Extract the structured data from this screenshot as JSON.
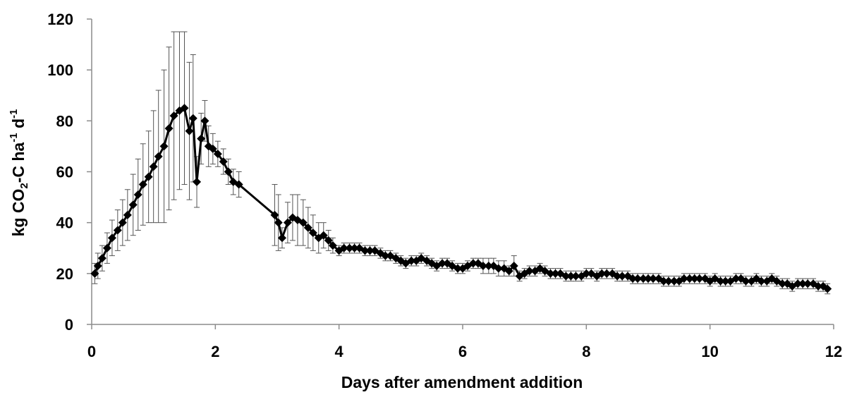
{
  "chart_data": {
    "type": "scatter",
    "title": "",
    "xlabel": "Days after amendment addition",
    "ylabel": {
      "p1": "kg CO",
      "sub1": "2",
      "p2": "-C ha",
      "sup1": "-1",
      "p3": " d",
      "sup2": "-1"
    },
    "xlim": [
      0,
      12
    ],
    "ylim": [
      0,
      120
    ],
    "xticks": [
      "0",
      "2",
      "4",
      "6",
      "8",
      "10",
      "12"
    ],
    "yticks": [
      "0",
      "20",
      "40",
      "60",
      "80",
      "100",
      "120"
    ],
    "grid": false,
    "legend": "none",
    "marker": "diamond",
    "color": "#000000",
    "series": [
      {
        "x": [
          0.05,
          0.1,
          0.17,
          0.25,
          0.33,
          0.42,
          0.5,
          0.58,
          0.67,
          0.75,
          0.83,
          0.92,
          1.0,
          1.08,
          1.17,
          1.25,
          1.33,
          1.42,
          1.5,
          1.58,
          1.64,
          1.7,
          1.77,
          1.83,
          1.89,
          1.96,
          2.04,
          2.13,
          2.21,
          2.29,
          2.38,
          2.96,
          3.02,
          3.08,
          3.17,
          3.25,
          3.33,
          3.42,
          3.5,
          3.58,
          3.67,
          3.75,
          3.83,
          3.9,
          4.0,
          4.08,
          4.17,
          4.25,
          4.33,
          4.42,
          4.5,
          4.58,
          4.67,
          4.75,
          4.83,
          4.92,
          5.0,
          5.08,
          5.17,
          5.25,
          5.33,
          5.42,
          5.5,
          5.58,
          5.67,
          5.75,
          5.83,
          5.92,
          6.0,
          6.08,
          6.17,
          6.25,
          6.33,
          6.42,
          6.5,
          6.58,
          6.67,
          6.75,
          6.83,
          6.92,
          7.0,
          7.08,
          7.17,
          7.25,
          7.33,
          7.42,
          7.5,
          7.58,
          7.67,
          7.75,
          7.83,
          7.92,
          8.0,
          8.08,
          8.17,
          8.25,
          8.33,
          8.42,
          8.5,
          8.58,
          8.67,
          8.75,
          8.83,
          8.92,
          9.0,
          9.08,
          9.17,
          9.25,
          9.33,
          9.42,
          9.5,
          9.58,
          9.67,
          9.75,
          9.83,
          9.92,
          10.0,
          10.08,
          10.17,
          10.25,
          10.33,
          10.42,
          10.5,
          10.58,
          10.67,
          10.75,
          10.83,
          10.92,
          11.0,
          11.08,
          11.17,
          11.25,
          11.33,
          11.42,
          11.5,
          11.58,
          11.67,
          11.75,
          11.83,
          11.9
        ],
        "y": [
          20,
          23,
          26,
          30,
          34,
          37,
          40,
          43,
          47,
          51,
          55,
          58,
          62,
          66,
          70,
          77,
          82,
          84,
          85,
          76,
          81,
          56,
          73,
          80,
          70,
          69,
          67,
          64,
          60,
          56,
          55,
          43,
          40,
          34,
          40,
          42,
          41,
          40,
          38,
          36,
          34,
          35,
          33,
          31,
          29,
          30,
          30,
          30,
          30,
          29,
          29,
          29,
          28,
          27,
          27,
          26,
          25,
          24,
          25,
          25,
          26,
          25,
          24,
          23,
          24,
          24,
          23,
          22,
          22,
          23,
          24,
          24,
          23,
          23,
          23,
          22,
          22,
          21,
          23,
          19,
          20,
          21,
          21,
          22,
          21,
          20,
          20,
          20,
          19,
          19,
          19,
          19,
          20,
          20,
          19,
          20,
          20,
          20,
          19,
          19,
          19,
          18,
          18,
          18,
          18,
          18,
          18,
          17,
          17,
          17,
          17,
          18,
          18,
          18,
          18,
          18,
          17,
          18,
          17,
          17,
          17,
          18,
          18,
          17,
          17,
          18,
          17,
          17,
          18,
          17,
          16,
          16,
          15,
          16,
          16,
          16,
          16,
          15,
          15,
          14
        ],
        "err": [
          4,
          5,
          5,
          6,
          7,
          8,
          9,
          10,
          12,
          14,
          16,
          18,
          22,
          26,
          30,
          32,
          33,
          31,
          30,
          27,
          25,
          10,
          10,
          8,
          8,
          6,
          5,
          5,
          5,
          5,
          5,
          12,
          11,
          4,
          8,
          9,
          10,
          9,
          8,
          7,
          6,
          5,
          4,
          3,
          2,
          2,
          2,
          2,
          2,
          2,
          2,
          2,
          2,
          2,
          2,
          2,
          2,
          2,
          2,
          2,
          2,
          2,
          2,
          2,
          2,
          2,
          2,
          2,
          2,
          2,
          2,
          2,
          3,
          3,
          3,
          3,
          3,
          2,
          4,
          2,
          2,
          2,
          2,
          2,
          2,
          2,
          2,
          2,
          2,
          2,
          2,
          2,
          2,
          2,
          2,
          2,
          2,
          2,
          2,
          2,
          2,
          2,
          2,
          2,
          2,
          2,
          2,
          2,
          2,
          2,
          2,
          2,
          2,
          2,
          2,
          2,
          2,
          2,
          2,
          2,
          2,
          2,
          2,
          2,
          2,
          2,
          2,
          2,
          2,
          2,
          2,
          2,
          2,
          2,
          2,
          2,
          2,
          2,
          2,
          2
        ]
      }
    ]
  }
}
